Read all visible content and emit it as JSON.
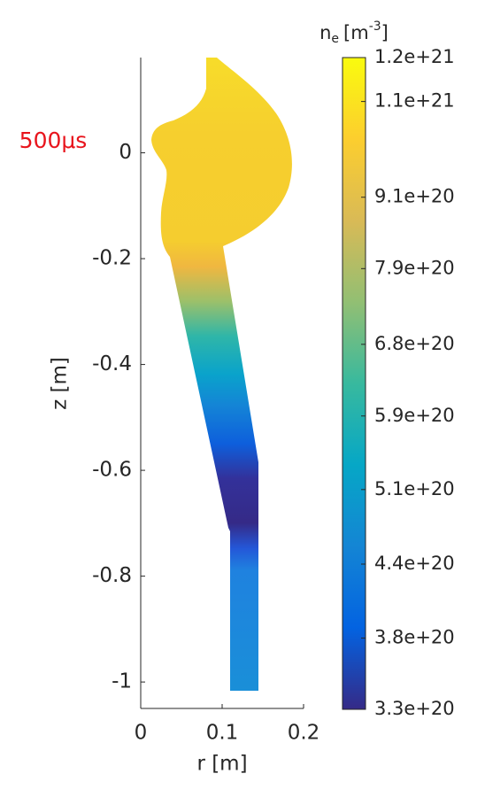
{
  "chart_data": {
    "type": "field",
    "annotation": "500μs",
    "xlabel": "r [m]",
    "ylabel": "z [m]",
    "xlim": [
      0,
      0.2
    ],
    "ylim": [
      -1.05,
      0.18
    ],
    "xticks": [
      0,
      0.1,
      0.2
    ],
    "yticks": [
      -1,
      -0.8,
      -0.6,
      -0.4,
      -0.2,
      0
    ],
    "colorbar": {
      "label": {
        "text": "n",
        "subscript": "e",
        "unit": "[m",
        "superscript": "-3",
        "unit_end": "]"
      },
      "lim": [
        3.3e+20,
        1.2e+21
      ],
      "scale": "log",
      "ticks": [
        {
          "value": 3.3e+20,
          "label": "3.3e+20"
        },
        {
          "value": 3.8e+20,
          "label": "3.8e+20"
        },
        {
          "value": 4.4e+20,
          "label": "4.4e+20"
        },
        {
          "value": 5.1e+20,
          "label": "5.1e+20"
        },
        {
          "value": 5.9e+20,
          "label": "5.9e+20"
        },
        {
          "value": 6.8e+20,
          "label": "6.8e+20"
        },
        {
          "value": 7.9e+20,
          "label": "7.9e+20"
        },
        {
          "value": 9.1e+20,
          "label": "9.1e+20"
        },
        {
          "value": 1.1e+21,
          "label": "1.1e+21"
        },
        {
          "value": 1.2e+21,
          "label": "1.2e+21"
        }
      ]
    }
  }
}
